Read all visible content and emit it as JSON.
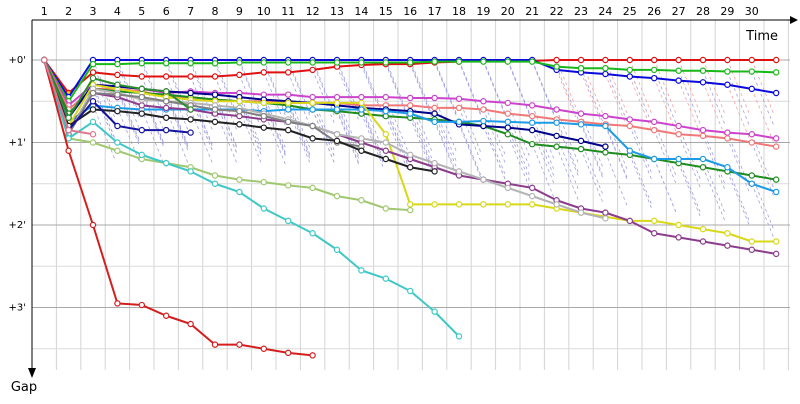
{
  "chart_data": {
    "type": "line",
    "xlabel": "Time",
    "ylabel": "Gap",
    "grid": true,
    "x_ticks": [
      "1",
      "2",
      "3",
      "4",
      "5",
      "6",
      "7",
      "8",
      "9",
      "10",
      "11",
      "12",
      "13",
      "14",
      "15",
      "16",
      "17",
      "18",
      "19",
      "20",
      "21",
      "22",
      "23",
      "24",
      "25",
      "26",
      "27",
      "28",
      "29",
      "30"
    ],
    "y_ticks": [
      "+0'",
      "+1'",
      "+2'",
      "+3'"
    ],
    "xlim": [
      0,
      31.2
    ],
    "ylim": [
      0,
      3.7
    ],
    "series": [
      {
        "color": "#e01010",
        "x": [
          1,
          2,
          3,
          4,
          5,
          6,
          7,
          8,
          9,
          10,
          11,
          12,
          13,
          14,
          15,
          16,
          17,
          18,
          19,
          20,
          21,
          22,
          23,
          24,
          25,
          26,
          27,
          28,
          29,
          30,
          31
        ],
        "y": [
          0,
          0.4,
          0.15,
          0.18,
          0.2,
          0.2,
          0.2,
          0.2,
          0.18,
          0.15,
          0.15,
          0.12,
          0.08,
          0.06,
          0.05,
          0.05,
          0.03,
          0.02,
          0.01,
          0.01,
          0.01,
          0,
          0,
          0,
          0,
          0,
          0,
          0,
          0,
          0,
          0
        ]
      },
      {
        "color": "#0a0adc",
        "x": [
          1,
          2,
          3,
          4,
          5,
          6,
          7,
          8,
          9,
          10,
          11,
          12,
          13,
          14,
          15,
          16,
          17,
          18,
          19,
          20,
          21,
          22,
          23,
          24,
          25,
          26,
          27,
          28,
          29,
          30,
          31
        ],
        "y": [
          0,
          0.45,
          0,
          0,
          0,
          0,
          0,
          0,
          0,
          0,
          0,
          0,
          0,
          0,
          0,
          0,
          0,
          0,
          0,
          0,
          0,
          0.12,
          0.15,
          0.17,
          0.2,
          0.22,
          0.25,
          0.27,
          0.3,
          0.35,
          0.4
        ]
      },
      {
        "color": "#18b818",
        "x": [
          1,
          2,
          3,
          4,
          5,
          6,
          7,
          8,
          9,
          10,
          11,
          12,
          13,
          14,
          15,
          16,
          17,
          18,
          19,
          20,
          21,
          22,
          23,
          24,
          25,
          26,
          27,
          28,
          29,
          30,
          31
        ],
        "y": [
          0,
          0.5,
          0.05,
          0.05,
          0.04,
          0.04,
          0.04,
          0.04,
          0.03,
          0.03,
          0.03,
          0.03,
          0.03,
          0.03,
          0.03,
          0.03,
          0.02,
          0.02,
          0.02,
          0.02,
          0.02,
          0.08,
          0.1,
          0.1,
          0.12,
          0.12,
          0.13,
          0.13,
          0.14,
          0.14,
          0.15
        ]
      },
      {
        "color": "#cc44cc",
        "x": [
          1,
          2,
          3,
          4,
          5,
          6,
          7,
          8,
          9,
          10,
          11,
          12,
          13,
          14,
          15,
          16,
          17,
          18,
          19,
          20,
          21,
          22,
          23,
          24,
          25,
          26,
          27,
          28,
          29,
          30,
          31
        ],
        "y": [
          0,
          0.55,
          0.3,
          0.32,
          0.35,
          0.4,
          0.38,
          0.4,
          0.4,
          0.42,
          0.42,
          0.45,
          0.45,
          0.45,
          0.45,
          0.46,
          0.46,
          0.47,
          0.5,
          0.52,
          0.55,
          0.6,
          0.65,
          0.68,
          0.72,
          0.75,
          0.8,
          0.85,
          0.88,
          0.9,
          0.95
        ]
      },
      {
        "color": "#f07878",
        "x": [
          1,
          2,
          3,
          4,
          5,
          6,
          7,
          8,
          9,
          10,
          11,
          12,
          13,
          14,
          15,
          16,
          17,
          18,
          19,
          20,
          21,
          22,
          23,
          24,
          25,
          26,
          27,
          28,
          29,
          30,
          31
        ],
        "y": [
          0,
          0.6,
          0.35,
          0.35,
          0.38,
          0.45,
          0.45,
          0.48,
          0.5,
          0.5,
          0.52,
          0.52,
          0.52,
          0.55,
          0.55,
          0.55,
          0.58,
          0.58,
          0.6,
          0.65,
          0.68,
          0.72,
          0.75,
          0.78,
          0.8,
          0.85,
          0.9,
          0.92,
          0.95,
          1.0,
          1.05
        ]
      },
      {
        "color": "#1e8c1e",
        "x": [
          1,
          2,
          3,
          4,
          5,
          6,
          7,
          8,
          9,
          10,
          11,
          12,
          13,
          14,
          15,
          16,
          17,
          18,
          19,
          20,
          21,
          22,
          23,
          24,
          25,
          26,
          27,
          28,
          29,
          30,
          31
        ],
        "y": [
          0,
          0.65,
          0.35,
          0.38,
          0.4,
          0.42,
          0.45,
          0.48,
          0.5,
          0.52,
          0.55,
          0.6,
          0.62,
          0.65,
          0.68,
          0.7,
          0.72,
          0.75,
          0.8,
          0.9,
          1.02,
          1.05,
          1.08,
          1.12,
          1.15,
          1.2,
          1.25,
          1.3,
          1.35,
          1.4,
          1.45
        ]
      },
      {
        "color": "#00008b",
        "x": [
          1,
          2,
          3,
          4,
          5,
          6,
          7,
          8,
          9,
          10,
          11,
          12,
          13,
          14,
          15,
          16,
          17,
          18,
          19,
          20,
          21,
          22,
          23,
          24
        ],
        "y": [
          0,
          0.7,
          0.3,
          0.32,
          0.35,
          0.38,
          0.4,
          0.42,
          0.45,
          0.48,
          0.5,
          0.52,
          0.55,
          0.58,
          0.6,
          0.62,
          0.65,
          0.78,
          0.8,
          0.82,
          0.85,
          0.92,
          0.98,
          1.05
        ]
      },
      {
        "color": "#1e9be6",
        "x": [
          1,
          2,
          3,
          4,
          5,
          6,
          7,
          8,
          9,
          10,
          11,
          12,
          13,
          14,
          15,
          16,
          17,
          18,
          19,
          20,
          21,
          22,
          23,
          24,
          25,
          26,
          27,
          28,
          29,
          30,
          31
        ],
        "y": [
          0,
          0.75,
          0.55,
          0.58,
          0.6,
          0.6,
          0.6,
          0.6,
          0.6,
          0.62,
          0.6,
          0.6,
          0.6,
          0.6,
          0.62,
          0.65,
          0.75,
          0.75,
          0.74,
          0.75,
          0.76,
          0.76,
          0.78,
          0.8,
          1.1,
          1.2,
          1.2,
          1.2,
          1.3,
          1.5,
          1.6
        ]
      },
      {
        "color": "#d8d818",
        "x": [
          1,
          2,
          3,
          4,
          5,
          6,
          7,
          8,
          9,
          10,
          11,
          12,
          13,
          14,
          15,
          16,
          17,
          18,
          19,
          20,
          21,
          22,
          23,
          24,
          25,
          26,
          27,
          28,
          29,
          30,
          31
        ],
        "y": [
          0,
          0.8,
          0.3,
          0.35,
          0.4,
          0.45,
          0.48,
          0.5,
          0.5,
          0.52,
          0.52,
          0.52,
          0.52,
          0.52,
          0.9,
          1.75,
          1.75,
          1.75,
          1.75,
          1.75,
          1.75,
          1.8,
          1.85,
          1.9,
          1.95,
          1.95,
          2.0,
          2.05,
          2.1,
          2.2,
          2.2
        ]
      },
      {
        "color": "#8c3c8c",
        "x": [
          1,
          2,
          3,
          4,
          5,
          6,
          7,
          8,
          9,
          10,
          11,
          12,
          13,
          14,
          15,
          16,
          17,
          18,
          19,
          20,
          21,
          22,
          23,
          24,
          25,
          26,
          27,
          28,
          29,
          30,
          31
        ],
        "y": [
          0,
          0.85,
          0.4,
          0.45,
          0.55,
          0.58,
          0.6,
          0.65,
          0.68,
          0.72,
          0.75,
          0.8,
          0.9,
          1.0,
          1.1,
          1.2,
          1.3,
          1.4,
          1.45,
          1.5,
          1.55,
          1.7,
          1.8,
          1.85,
          1.95,
          2.1,
          2.15,
          2.2,
          2.25,
          2.3,
          2.35
        ]
      },
      {
        "color": "#b4b4b4",
        "x": [
          1,
          2,
          3,
          4,
          5,
          6,
          7,
          8,
          9,
          10,
          11,
          12,
          13,
          14,
          15,
          16,
          17,
          18,
          19,
          20,
          21,
          22,
          23,
          24
        ],
        "y": [
          0,
          0.9,
          0.35,
          0.4,
          0.48,
          0.5,
          0.52,
          0.55,
          0.58,
          0.65,
          0.72,
          0.8,
          0.9,
          0.95,
          1.0,
          1.15,
          1.25,
          1.35,
          1.45,
          1.55,
          1.65,
          1.75,
          1.85,
          1.92
        ]
      },
      {
        "color": "#808080",
        "x": [
          1,
          2,
          3,
          4,
          5,
          6,
          7,
          8,
          9,
          10,
          11,
          12,
          13,
          14
        ],
        "y": [
          0,
          0.9,
          0.4,
          0.42,
          0.45,
          0.5,
          0.55,
          0.6,
          0.62,
          0.68,
          0.75,
          0.8,
          1.0,
          1.05
        ]
      },
      {
        "color": "#222222",
        "x": [
          1,
          2,
          3,
          4,
          5,
          6,
          7,
          8,
          9,
          10,
          11,
          12,
          13,
          14,
          15,
          16,
          17
        ],
        "y": [
          0,
          0.8,
          0.6,
          0.62,
          0.65,
          0.7,
          0.72,
          0.75,
          0.78,
          0.82,
          0.85,
          0.95,
          0.98,
          1.1,
          1.2,
          1.3,
          1.35
        ]
      },
      {
        "color": "#a0c870",
        "x": [
          1,
          2,
          3,
          4,
          5,
          6,
          7,
          8,
          9,
          10,
          11,
          12,
          13,
          14,
          15,
          16
        ],
        "y": [
          0,
          0.95,
          1.0,
          1.1,
          1.2,
          1.25,
          1.3,
          1.4,
          1.45,
          1.48,
          1.52,
          1.55,
          1.65,
          1.7,
          1.8,
          1.82
        ]
      },
      {
        "color": "#40c8c8",
        "x": [
          1,
          2,
          3,
          4,
          5,
          6,
          7,
          8,
          9,
          10,
          11,
          12,
          13,
          14,
          15,
          16,
          17,
          18
        ],
        "y": [
          0,
          0.95,
          0.75,
          1.0,
          1.15,
          1.25,
          1.35,
          1.5,
          1.6,
          1.8,
          1.95,
          2.1,
          2.3,
          2.55,
          2.65,
          2.8,
          3.05,
          3.35
        ]
      },
      {
        "color": "#d41e1e",
        "x": [
          1,
          2,
          3,
          4,
          5,
          6,
          7,
          8,
          9,
          10,
          11,
          12
        ],
        "y": [
          0,
          1.1,
          2.0,
          2.95,
          2.97,
          3.1,
          3.2,
          3.45,
          3.45,
          3.5,
          3.55,
          3.58
        ]
      },
      {
        "color": "#1414a0",
        "x": [
          1,
          2,
          3,
          4,
          5,
          6,
          7
        ],
        "y": [
          0,
          0.85,
          0.5,
          0.8,
          0.85,
          0.85,
          0.88
        ]
      },
      {
        "color": "#2d8c2d",
        "x": [
          1,
          2,
          3,
          4,
          5,
          6,
          7
        ],
        "y": [
          0,
          0.7,
          0.22,
          0.3,
          0.35,
          0.38,
          0.6
        ]
      },
      {
        "color": "#e07890",
        "x": [
          1,
          2,
          3
        ],
        "y": [
          0,
          0.85,
          0.9
        ]
      }
    ]
  }
}
